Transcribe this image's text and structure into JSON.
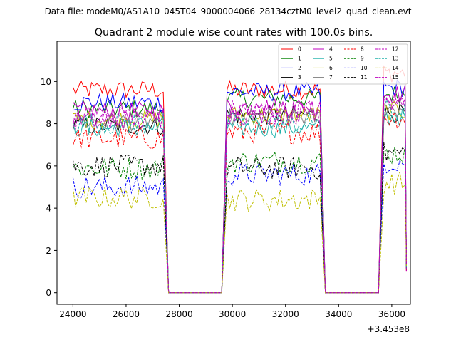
{
  "chart_data": {
    "type": "line",
    "suptitle": "Data file: modeM0/AS1A10_045T04_9000004066_28134cztM0_level2_quad_clean.evt",
    "title": "Quadrant 2 module wise count rates with 100.0s bins.",
    "xlabel": "",
    "ylabel": "",
    "x_offset_label": "+3.453e8",
    "xlim": [
      23400,
      36700
    ],
    "ylim": [
      -0.55,
      11.9
    ],
    "x_ticks": [
      24000,
      26000,
      28000,
      30000,
      32000,
      34000,
      36000
    ],
    "x_tick_labels": [
      "24000",
      "26000",
      "28000",
      "30000",
      "32000",
      "34000",
      "36000"
    ],
    "y_ticks": [
      0,
      2,
      4,
      6,
      8,
      10
    ],
    "y_tick_labels": [
      "0",
      "2",
      "4",
      "6",
      "8",
      "10"
    ],
    "bin_width": 100,
    "segments": [
      {
        "start": 24000,
        "end": 27400
      },
      {
        "start": 29800,
        "end": 33300
      },
      {
        "start": 35700,
        "end": 36500
      }
    ],
    "gap_edges": [
      {
        "from": 27400,
        "to": 27600
      },
      {
        "from": 29600,
        "to": 29800
      },
      {
        "from": 33300,
        "to": 33500
      },
      {
        "from": 35500,
        "to": 35700
      }
    ],
    "gap_end": 36550,
    "legend_position": "upper-right",
    "series": [
      {
        "name": "0",
        "color": "#ff0000",
        "dash": "solid",
        "levels": [
          9.6,
          9.6,
          10.4
        ]
      },
      {
        "name": "1",
        "color": "#008000",
        "dash": "solid",
        "levels": [
          8.7,
          9.2,
          9.4
        ]
      },
      {
        "name": "2",
        "color": "#0000ff",
        "dash": "solid",
        "levels": [
          9.0,
          9.5,
          9.7
        ]
      },
      {
        "name": "3",
        "color": "#000000",
        "dash": "solid",
        "levels": [
          7.9,
          8.4,
          8.5
        ]
      },
      {
        "name": "4",
        "color": "#bf00bf",
        "dash": "solid",
        "levels": [
          8.6,
          8.8,
          9.4
        ]
      },
      {
        "name": "5",
        "color": "#20b2aa",
        "dash": "solid",
        "levels": [
          7.8,
          7.8,
          8.3
        ]
      },
      {
        "name": "6",
        "color": "#bfbf00",
        "dash": "solid",
        "levels": [
          8.2,
          8.4,
          8.6
        ]
      },
      {
        "name": "7",
        "color": "#808080",
        "dash": "solid",
        "levels": [
          8.1,
          8.3,
          8.7
        ]
      },
      {
        "name": "8",
        "color": "#ff0000",
        "dash": "dashed",
        "levels": [
          7.3,
          7.6,
          8.3
        ]
      },
      {
        "name": "9",
        "color": "#008000",
        "dash": "dashed",
        "levels": [
          5.9,
          6.2,
          6.6
        ]
      },
      {
        "name": "10",
        "color": "#0000ff",
        "dash": "dashed",
        "levels": [
          5.0,
          5.6,
          6.2
        ]
      },
      {
        "name": "11",
        "color": "#000000",
        "dash": "dashed",
        "levels": [
          6.0,
          5.9,
          6.6
        ]
      },
      {
        "name": "12",
        "color": "#bf00bf",
        "dash": "dashed",
        "levels": [
          8.3,
          8.6,
          9.0
        ]
      },
      {
        "name": "13",
        "color": "#20b2aa",
        "dash": "dashed",
        "levels": [
          8.0,
          8.0,
          8.6
        ]
      },
      {
        "name": "14",
        "color": "#bfbf00",
        "dash": "dashed",
        "levels": [
          4.5,
          4.4,
          5.2
        ]
      },
      {
        "name": "15",
        "color": "#bf00bf",
        "dash": "dashed",
        "levels": [
          8.2,
          8.5,
          9.2
        ]
      }
    ]
  }
}
